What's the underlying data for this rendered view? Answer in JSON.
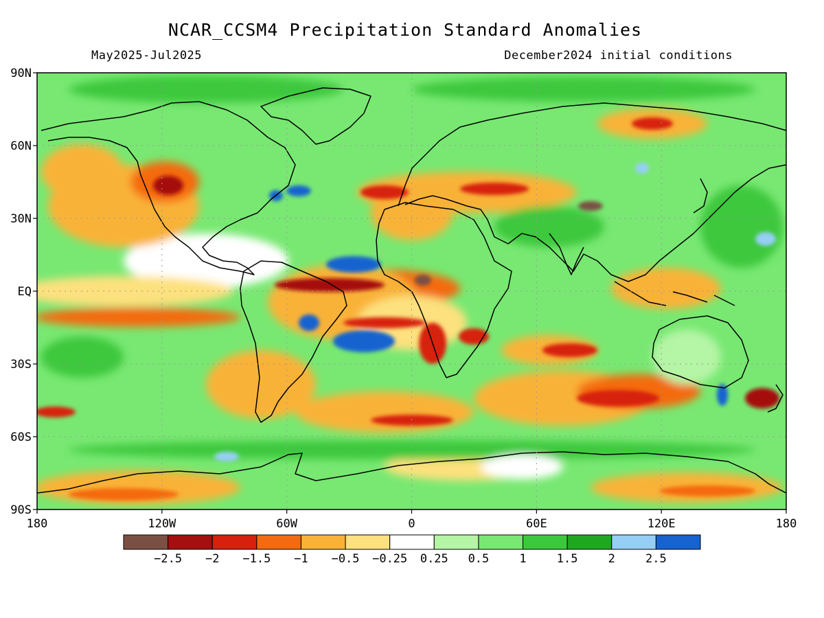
{
  "title": "NCAR_CCSM4 Precipitation Standard Anomalies",
  "period": "May2025-Jul2025",
  "initial_conditions": "December2024 initial conditions",
  "map": {
    "lat_ticks": [
      "90N",
      "60N",
      "30N",
      "EQ",
      "30S",
      "60S",
      "90S"
    ],
    "lon_ticks": [
      "180",
      "120W",
      "60W",
      "0",
      "60E",
      "120E",
      "180"
    ]
  },
  "colorbar": {
    "colors": [
      "#7a5045",
      "#a50f0f",
      "#d7200e",
      "#f46a10",
      "#f9b237",
      "#fde17e",
      "#ffffff",
      "#b5f5a6",
      "#78e872",
      "#3cc83c",
      "#1fa81f",
      "#96cff5",
      "#1663d0"
    ],
    "labels": [
      "-2.5",
      "-2",
      "-1.5",
      "-1",
      "-0.5",
      "-0.25",
      "0.25",
      "0.5",
      "1",
      "1.5",
      "2",
      "2.5"
    ]
  },
  "colors": {
    "land_outline": "#000000",
    "grid": "#9a9a9a",
    "ocean_green": "#78e872",
    "light_green": "#b5f5a6"
  }
}
